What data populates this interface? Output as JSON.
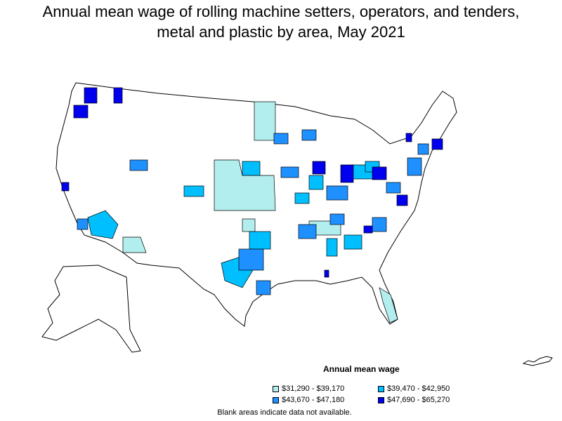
{
  "title_line1": "Annual mean wage of rolling machine setters, operators, and tenders,",
  "title_line2": "metal and plastic by area, May 2021",
  "legend": {
    "title": "Annual mean wage",
    "items": [
      {
        "label": "$31,290 - $39,170",
        "color": "#b2eeee"
      },
      {
        "label": "$39,470 - $42,950",
        "color": "#00bfff"
      },
      {
        "label": "$43,670 - $47,180",
        "color": "#1e90ff"
      },
      {
        "label": "$47,690 - $65,270",
        "color": "#0000ee"
      }
    ]
  },
  "note": "Blank areas indicate data not available.",
  "colors": {
    "no_data": "#ffffff",
    "border": "#000000"
  }
}
